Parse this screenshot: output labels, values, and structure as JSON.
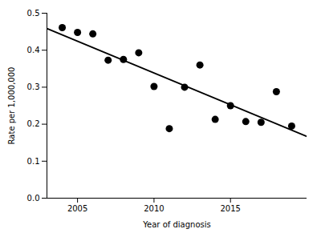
{
  "chart_data": {
    "type": "scatter",
    "x": [
      2004,
      2005,
      2006,
      2007,
      2008,
      2009,
      2010,
      2011,
      2012,
      2013,
      2014,
      2015,
      2016,
      2017,
      2018,
      2019
    ],
    "values": [
      0.461,
      0.448,
      0.444,
      0.373,
      0.375,
      0.393,
      0.302,
      0.188,
      0.3,
      0.36,
      0.213,
      0.25,
      0.207,
      0.205,
      0.288,
      0.195
    ],
    "color": "#000000",
    "fit_line": {
      "x": [
        2003,
        2020
      ],
      "values": [
        0.45865,
        0.1666
      ],
      "color": "#000000"
    },
    "xlabel": "Year of diagnosis",
    "ylabel": "Rate per 1,000,000",
    "xlim": [
      2003,
      2020
    ],
    "ylim": [
      0,
      0.5
    ],
    "xticks": [
      2005,
      2010,
      2015
    ],
    "yticks": [
      {
        "value": 0,
        "label": "0.0"
      },
      0.1,
      0.2,
      0.3,
      0.4,
      0.5
    ],
    "grid": false
  }
}
